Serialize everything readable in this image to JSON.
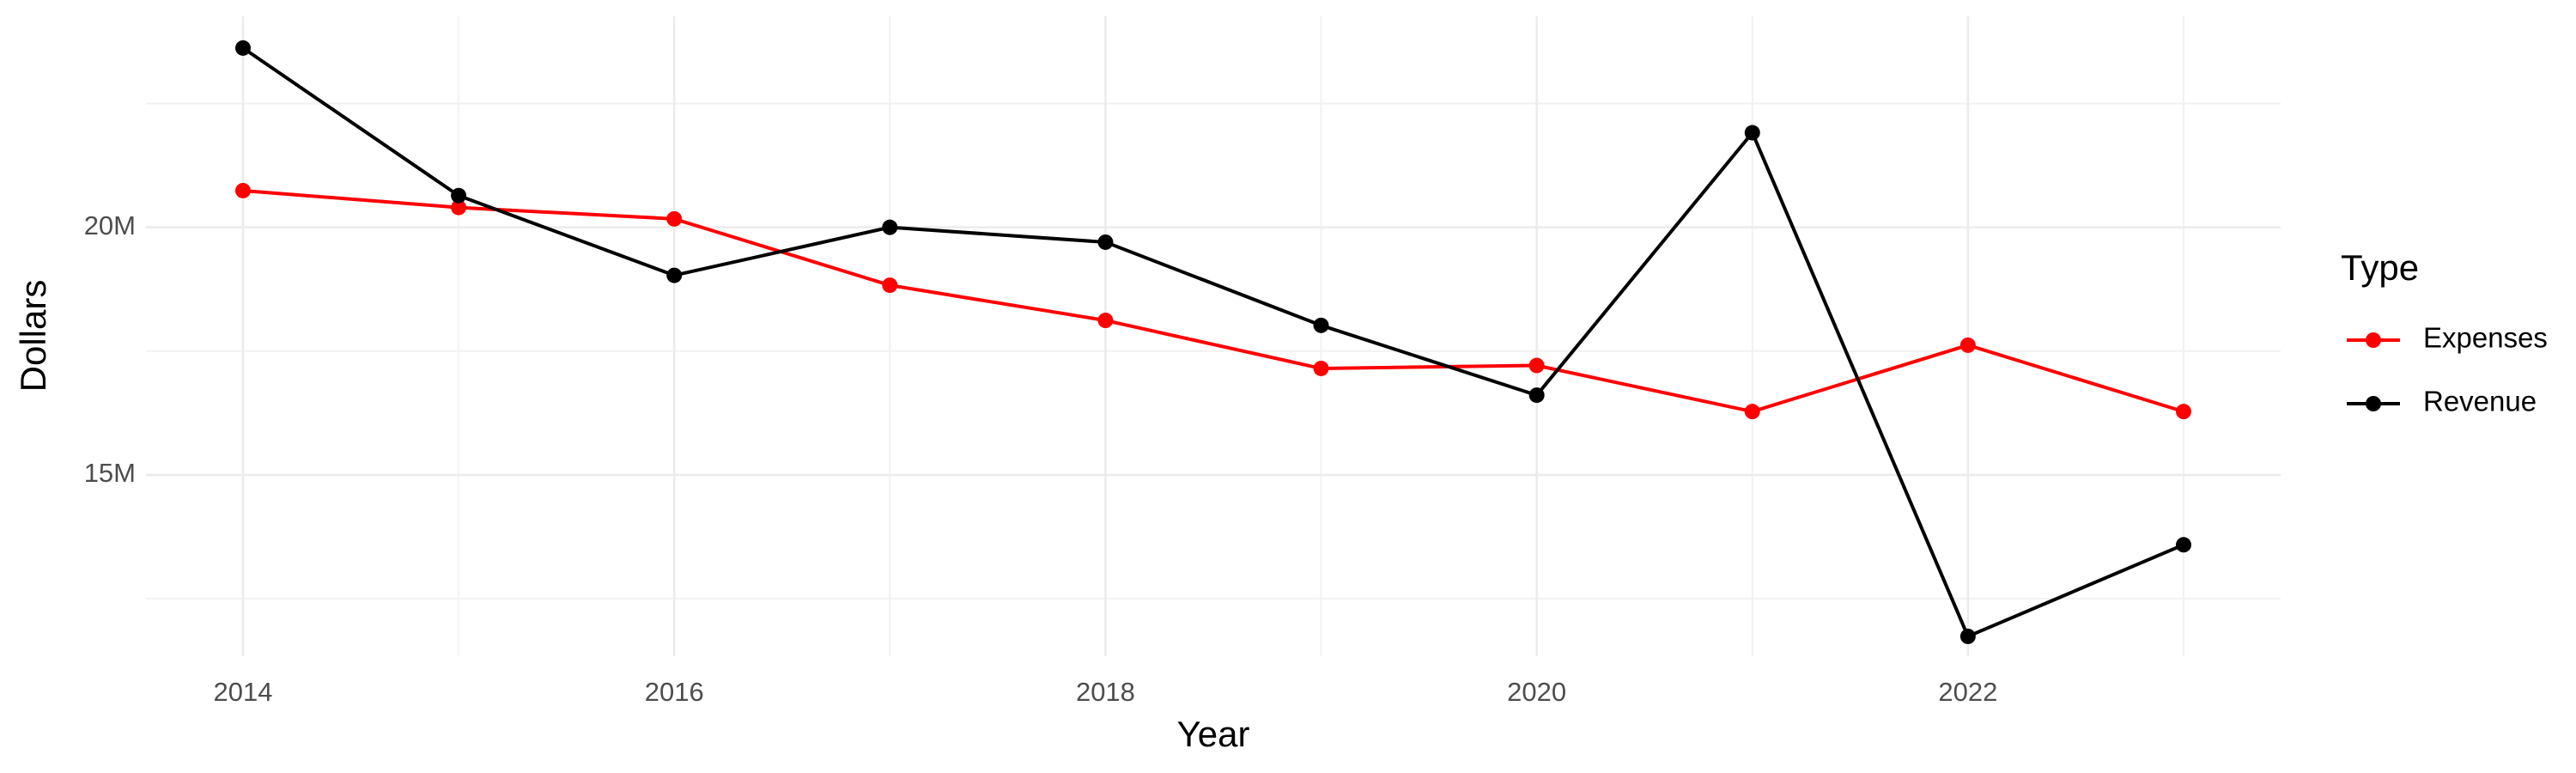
{
  "chart_data": {
    "type": "line",
    "x": [
      2014,
      2015,
      2016,
      2017,
      2018,
      2019,
      2020,
      2021,
      2022,
      2023
    ],
    "series": [
      {
        "name": "Expenses",
        "color": "#ff0000",
        "values": [
          20740000,
          20400000,
          20170000,
          18830000,
          18120000,
          17150000,
          17210000,
          16280000,
          17620000,
          16280000
        ]
      },
      {
        "name": "Revenue",
        "color": "#000000",
        "values": [
          23620000,
          20640000,
          19030000,
          20000000,
          19700000,
          18020000,
          16610000,
          21910000,
          11740000,
          13590000
        ]
      }
    ],
    "x_label": "Year",
    "y_label": "Dollars",
    "legend_title": "Type",
    "xlim": [
      2013.55,
      2023.45
    ],
    "xticks": [
      2014,
      2016,
      2018,
      2020,
      2022
    ],
    "ylim": [
      11340000,
      24260000
    ],
    "yticks": [
      {
        "value": 15000000,
        "label": "15M"
      },
      {
        "value": 20000000,
        "label": "20M"
      }
    ],
    "grid": true,
    "legend_position": "right"
  }
}
